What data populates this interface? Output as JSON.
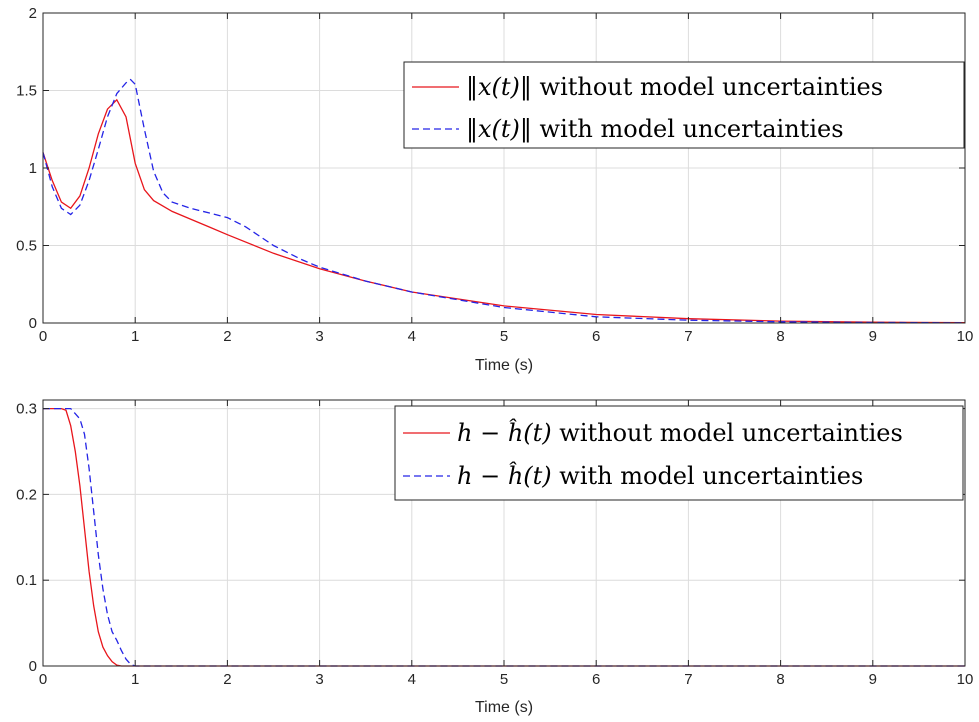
{
  "colors": {
    "series_solid": "#e8161c",
    "series_dashed": "#2424e6",
    "grid": "#dcdcdc",
    "axis": "#262626"
  },
  "chart_data": [
    {
      "type": "line",
      "xlabel": "Time (s)",
      "ylabel": "",
      "xlim": [
        0,
        10
      ],
      "ylim": [
        0,
        2
      ],
      "xticks": [
        0,
        1,
        2,
        3,
        4,
        5,
        6,
        7,
        8,
        9,
        10
      ],
      "yticks": [
        0,
        0.5,
        1,
        1.5,
        2
      ],
      "ytick_labels": [
        "0",
        "0.5",
        "1",
        "1.5",
        "2"
      ],
      "grid": true,
      "legend_position": "top-right",
      "series": [
        {
          "name": "‖x(t)‖ without model uncertainties",
          "legend_math": "‖x(t)‖",
          "legend_text": "without model uncertainties",
          "style": "solid",
          "color": "#e8161c",
          "x": [
            0,
            0.1,
            0.2,
            0.3,
            0.4,
            0.5,
            0.6,
            0.7,
            0.8,
            0.9,
            1.0,
            1.1,
            1.2,
            1.4,
            1.6,
            1.8,
            2.0,
            2.5,
            3.0,
            3.5,
            4.0,
            5.0,
            6.0,
            7.0,
            8.0,
            9.0,
            10.0
          ],
          "y": [
            1.1,
            0.92,
            0.78,
            0.74,
            0.82,
            1.0,
            1.22,
            1.38,
            1.44,
            1.33,
            1.03,
            0.86,
            0.79,
            0.72,
            0.67,
            0.62,
            0.57,
            0.45,
            0.35,
            0.27,
            0.2,
            0.11,
            0.055,
            0.028,
            0.012,
            0.005,
            0.002
          ]
        },
        {
          "name": "‖x(t)‖ with model uncertainties",
          "legend_math": "‖x(t)‖",
          "legend_text": "with model uncertainties",
          "style": "dashed",
          "color": "#2424e6",
          "x": [
            0,
            0.1,
            0.2,
            0.3,
            0.4,
            0.5,
            0.6,
            0.7,
            0.8,
            0.9,
            0.95,
            1.0,
            1.1,
            1.2,
            1.3,
            1.4,
            1.6,
            1.8,
            2.0,
            2.2,
            2.5,
            2.8,
            3.0,
            3.5,
            4.0,
            5.0,
            6.0,
            7.0,
            8.0,
            9.0,
            10.0
          ],
          "y": [
            1.1,
            0.88,
            0.74,
            0.7,
            0.76,
            0.92,
            1.12,
            1.33,
            1.48,
            1.55,
            1.57,
            1.54,
            1.25,
            0.98,
            0.84,
            0.78,
            0.74,
            0.71,
            0.68,
            0.62,
            0.5,
            0.41,
            0.36,
            0.27,
            0.2,
            0.1,
            0.04,
            0.018,
            0.008,
            0.003,
            0.001
          ]
        }
      ]
    },
    {
      "type": "line",
      "xlabel": "Time (s)",
      "ylabel": "",
      "xlim": [
        0,
        10
      ],
      "ylim": [
        0,
        0.31
      ],
      "xticks": [
        0,
        1,
        2,
        3,
        4,
        5,
        6,
        7,
        8,
        9,
        10
      ],
      "yticks": [
        0,
        0.1,
        0.2,
        0.3
      ],
      "ytick_labels": [
        "0",
        "0.1",
        "0.2",
        "0.3"
      ],
      "grid": true,
      "legend_position": "top-right",
      "series": [
        {
          "name": "h − ĥ(t) without model uncertainties",
          "legend_math": "h − ĥ(t)",
          "legend_text": "without model uncertainties",
          "style": "solid",
          "color": "#e8161c",
          "x": [
            0,
            0.2,
            0.25,
            0.3,
            0.35,
            0.4,
            0.45,
            0.5,
            0.55,
            0.6,
            0.65,
            0.7,
            0.75,
            0.8,
            0.85,
            0.9,
            1.0,
            10.0
          ],
          "y": [
            0.3,
            0.3,
            0.298,
            0.28,
            0.25,
            0.21,
            0.16,
            0.11,
            0.07,
            0.04,
            0.022,
            0.012,
            0.005,
            0.001,
            0.0,
            0.0,
            0.0,
            0.0
          ]
        },
        {
          "name": "h − ĥ(t) with model uncertainties",
          "legend_math": "h − ĥ(t)",
          "legend_text": "with model uncertainties",
          "style": "dashed",
          "color": "#2424e6",
          "x": [
            0,
            0.3,
            0.35,
            0.4,
            0.45,
            0.5,
            0.55,
            0.6,
            0.65,
            0.7,
            0.75,
            0.8,
            0.85,
            0.9,
            0.95,
            1.0,
            1.05,
            10.0
          ],
          "y": [
            0.3,
            0.3,
            0.294,
            0.288,
            0.27,
            0.23,
            0.18,
            0.13,
            0.09,
            0.06,
            0.04,
            0.03,
            0.018,
            0.008,
            0.002,
            0.0,
            0.0,
            0.0
          ]
        }
      ]
    }
  ]
}
